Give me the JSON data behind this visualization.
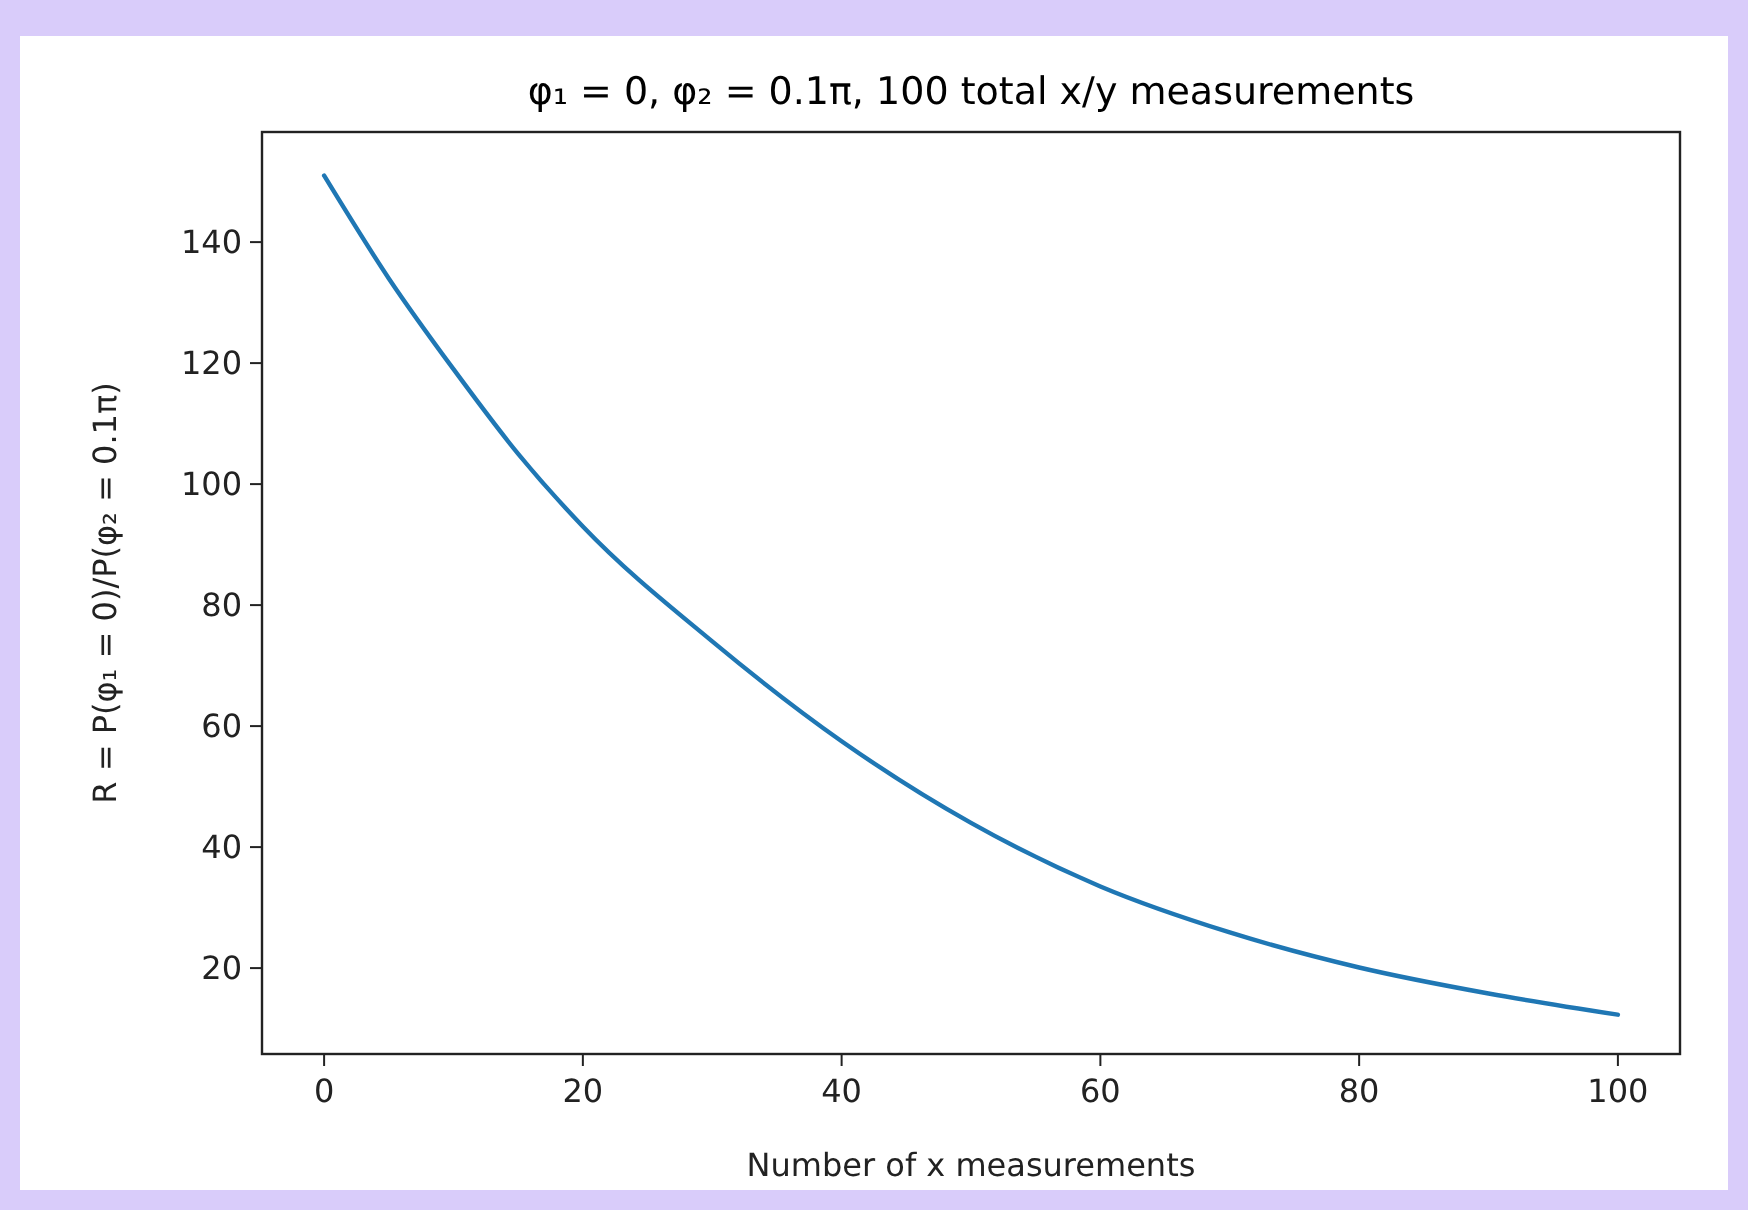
{
  "chart_data": {
    "type": "line",
    "title": "φ₁ = 0, φ₂ = 0.1π, 100 total x/y measurements",
    "xlabel": "Number of x measurements",
    "ylabel": "R = P(φ₁ = 0)/P(φ₂ = 0.1π)",
    "xlim": [
      -4.8,
      104.8
    ],
    "xticks": [
      0,
      20,
      40,
      60,
      80,
      100
    ],
    "ylim": [
      5.8,
      158.2
    ],
    "yticks": [
      20,
      40,
      60,
      80,
      100,
      120,
      140
    ],
    "grid": false,
    "series": [
      {
        "color": "#1f77b4",
        "x": [
          0,
          5,
          10,
          15,
          20,
          30,
          40,
          50,
          60,
          70,
          80,
          90,
          100
        ],
        "values": [
          151,
          134,
          119,
          105,
          93,
          74,
          57.5,
          44,
          33.5,
          25.9,
          20.1,
          15.8,
          12.3
        ]
      }
    ]
  }
}
